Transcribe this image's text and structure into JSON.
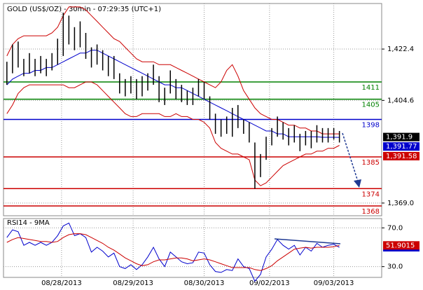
{
  "chart_data": [
    {
      "type": "hlc",
      "title": "GOLD (US$/OZ) - 30min - 07:29:35 (UTC+1)",
      "xlim": [
        -0.6,
        66.5
      ],
      "xticks": [
        {
          "value": 9.7,
          "label": "08/28/2013"
        },
        {
          "value": 22.4,
          "label": "08/29/2013"
        },
        {
          "value": 35,
          "label": "08/30/2013"
        },
        {
          "value": 46.6,
          "label": "09/02/2013"
        },
        {
          "value": 58,
          "label": "09/03/2013"
        }
      ],
      "ylim": [
        1364.6,
        1438.2
      ],
      "yticks": [
        {
          "value": 1369.0,
          "label": "1,369.0"
        },
        {
          "value": 1404.6,
          "label": "1,404.6"
        },
        {
          "value": 1422.4,
          "label": "1,422.4"
        }
      ],
      "bar_color": "#000000",
      "high": [
        1418,
        1424,
        1425,
        1419,
        1421,
        1419,
        1420,
        1419,
        1421,
        1426,
        1435,
        1434,
        1430,
        1432,
        1428,
        1423,
        1424,
        1422,
        1420,
        1420,
        1414,
        1412,
        1413,
        1412,
        1413,
        1414,
        1417,
        1413,
        1409,
        1415,
        1412,
        1410,
        1408,
        1409,
        1412,
        1411,
        1406,
        1400,
        1398,
        1399,
        1402,
        1403,
        1398,
        1397,
        1390,
        1386,
        1392,
        1395,
        1399,
        1397,
        1395,
        1396,
        1393,
        1394,
        1394,
        1396,
        1395,
        1395,
        1395,
        1394
      ],
      "low": [
        1410,
        1414,
        1416,
        1413,
        1414,
        1413,
        1414,
        1413,
        1415,
        1417,
        1420,
        1424,
        1422,
        1423,
        1419,
        1416,
        1417,
        1415,
        1413,
        1412,
        1407,
        1406,
        1407,
        1405,
        1406,
        1408,
        1410,
        1404,
        1403,
        1407,
        1405,
        1404,
        1403,
        1403,
        1406,
        1405,
        1398,
        1393,
        1392,
        1393,
        1392,
        1395,
        1393,
        1390,
        1374,
        1378,
        1384,
        1389,
        1392,
        1391,
        1389,
        1390,
        1387,
        1389,
        1388,
        1390,
        1390,
        1390,
        1391,
        1390
      ],
      "bands": {
        "color": "#cc0000",
        "upper": [
          1420,
          1424,
          1426,
          1427,
          1427,
          1427,
          1427,
          1427,
          1428,
          1430,
          1434,
          1437,
          1437,
          1437,
          1436,
          1434,
          1432,
          1430,
          1428,
          1426,
          1425,
          1423,
          1421,
          1419,
          1418,
          1418,
          1418,
          1417,
          1417,
          1417,
          1416,
          1415,
          1414,
          1413,
          1412,
          1411,
          1410,
          1409,
          1411,
          1415,
          1417,
          1413,
          1408,
          1405,
          1402,
          1400,
          1399,
          1398,
          1398,
          1397,
          1396,
          1396,
          1395,
          1395,
          1394,
          1394,
          1393,
          1393,
          1393,
          1393
        ],
        "lower": [
          1400,
          1403,
          1407,
          1409,
          1410,
          1410,
          1410,
          1410,
          1410,
          1410,
          1410,
          1409,
          1409,
          1410,
          1411,
          1411,
          1410,
          1408,
          1406,
          1404,
          1402,
          1400,
          1399,
          1399,
          1400,
          1400,
          1400,
          1400,
          1399,
          1399,
          1400,
          1399,
          1399,
          1398,
          1398,
          1397,
          1395,
          1390,
          1388,
          1387,
          1386,
          1386,
          1385,
          1384,
          1377,
          1375,
          1376,
          1378,
          1380,
          1382,
          1383,
          1384,
          1385,
          1386,
          1386,
          1387,
          1387,
          1388,
          1388,
          1389
        ]
      },
      "ma": {
        "color": "#0000cc",
        "values": [
          1410,
          1412,
          1413,
          1414,
          1414,
          1415,
          1415,
          1416,
          1416,
          1417,
          1418,
          1419,
          1420,
          1421,
          1421,
          1422,
          1422,
          1421,
          1420,
          1419,
          1418,
          1417,
          1416,
          1415,
          1414,
          1413,
          1412,
          1411,
          1410,
          1410,
          1409,
          1409,
          1408,
          1407,
          1406,
          1405,
          1404,
          1403,
          1402,
          1401,
          1400,
          1399,
          1398,
          1397,
          1396,
          1395,
          1394,
          1394,
          1393,
          1393,
          1392,
          1392,
          1392,
          1392,
          1392,
          1392,
          1391.8,
          1391.8,
          1391.8,
          1391.77
        ]
      },
      "levels": [
        {
          "value": 1411,
          "color": "#008000"
        },
        {
          "value": 1405,
          "color": "#008000"
        },
        {
          "value": 1398,
          "color": "#0000cc"
        },
        {
          "value": 1385,
          "color": "#cc0000"
        },
        {
          "value": 1374,
          "color": "#cc0000"
        },
        {
          "value": 1368,
          "color": "#cc0000"
        }
      ],
      "price_labels": [
        {
          "value": 1391.9,
          "label": "1,391.9",
          "color": "#000000"
        },
        {
          "value": 1391.77,
          "label": "1,391.77",
          "color": "#0000cc"
        },
        {
          "value": 1391.58,
          "label": "1,391.58",
          "color": "#cc0000"
        }
      ]
    },
    {
      "type": "line",
      "title": "RSI14 - 9MA",
      "ylim": [
        18.9,
        79.6
      ],
      "yticks": [
        {
          "value": 30,
          "label": "30.0"
        },
        {
          "value": 70,
          "label": "70.0"
        }
      ],
      "series": [
        {
          "color": "#0000cc",
          "values": [
            60,
            68,
            66,
            52,
            55,
            52,
            55,
            52,
            55,
            62,
            72,
            75,
            62,
            64,
            60,
            45,
            50,
            46,
            40,
            44,
            30,
            28,
            32,
            27,
            32,
            40,
            50,
            38,
            30,
            45,
            40,
            35,
            33,
            34,
            45,
            44,
            32,
            25,
            24,
            27,
            26,
            38,
            30,
            28,
            15,
            22,
            40,
            48,
            58,
            52,
            48,
            52,
            42,
            50,
            46,
            54,
            50,
            52,
            53,
            49.9865
          ]
        },
        {
          "color": "#cc0000",
          "values": [
            55,
            58,
            60,
            59,
            58,
            57,
            56,
            56,
            55,
            56,
            60,
            63,
            64,
            64,
            63,
            60,
            57,
            54,
            50,
            47,
            43,
            39,
            36,
            33,
            31,
            32,
            35,
            37,
            37,
            38,
            39,
            39,
            38,
            36,
            37,
            38,
            37,
            35,
            33,
            31,
            29,
            29,
            29,
            29,
            27,
            26,
            28,
            31,
            36,
            40,
            44,
            48,
            49,
            50,
            49,
            50,
            50,
            50,
            50.5,
            51.9015
          ]
        }
      ]
    }
  ]
}
